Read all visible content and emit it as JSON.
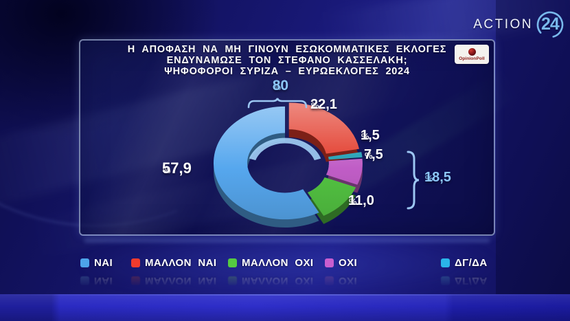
{
  "channel": {
    "name": "ACTION",
    "number": "24"
  },
  "panel": {
    "title_lines": [
      "Η ΑΠΟΦΑΣΗ ΝΑ ΜΗ ΓΙΝΟΥΝ ΕΣΩΚΟΜΜΑΤΙΚΕΣ ΕΚΛΟΓΕΣ",
      "ΕΝΔΥΝΑΜΩΣΕ ΤΟΝ ΣΤΕΦΑΝΟ ΚΑΣΣΕΛΑΚΗ;",
      "ΨΗΦΟΦΟΡΟΙ ΣΥΡΙΖΑ – ΕΥΡΩΕΚΛΟΓΕΣ 2024"
    ],
    "source": "OpinionPoll"
  },
  "chart_data": {
    "type": "pie",
    "title": "Η ΑΠΟΦΑΣΗ ΝΑ ΜΗ ΓΙΝΟΥΝ ΕΣΩΚΟΜΜΑΤΙΚΕΣ ΕΚΛΟΓΕΣ ΕΝΔΥΝΑΜΩΣΕ ΤΟΝ ΣΤΕΦΑΝΟ ΚΑΣΣΕΛΑΚΗ; ΨΗΦΟΦΟΡΟΙ ΣΥΡΙΖΑ – ΕΥΡΩΕΚΛΟΓΕΣ 2024",
    "unit": "%",
    "slices": [
      {
        "label": "ΜΑΛΛΟΝ ΝΑΙ",
        "value": 22.1,
        "display": "22,1",
        "color": "#e23a2a"
      },
      {
        "label": "ΔΓ/ΔΑ",
        "value": 1.5,
        "display": "1,5",
        "color": "#1f9fb4"
      },
      {
        "label": "ΟΧΙ",
        "value": 7.5,
        "display": "7,5",
        "color": "#c05dc6"
      },
      {
        "label": "ΜΑΛΛΟΝ ΟΧΙ",
        "value": 11.0,
        "display": "11,0",
        "color": "#53c342"
      },
      {
        "label": "ΝΑΙ",
        "value": 57.9,
        "display": "57,9",
        "color": "#56a7ee"
      }
    ],
    "groups": [
      {
        "display": "80",
        "members": [
          "ΝΑΙ",
          "ΜΑΛΛΟΝ ΝΑΙ"
        ]
      },
      {
        "display": "18,5",
        "members": [
          "ΟΧΙ",
          "ΜΑΛΛΟΝ ΟΧΙ"
        ]
      }
    ],
    "percent_sign": "%"
  },
  "legend": {
    "items": [
      {
        "label": "ΝΑΙ",
        "color": "#4da4ea"
      },
      {
        "label": "ΜΑΛΛΟΝ ΝΑΙ",
        "color": "#ef3b2d"
      },
      {
        "label": "ΜΑΛΛΟΝ ΟΧΙ",
        "color": "#55ca41"
      },
      {
        "label": "ΟΧΙ",
        "color": "#c95ecf"
      },
      {
        "label": "ΔΓ/ΔΑ",
        "color": "#2ab5e9"
      }
    ]
  }
}
